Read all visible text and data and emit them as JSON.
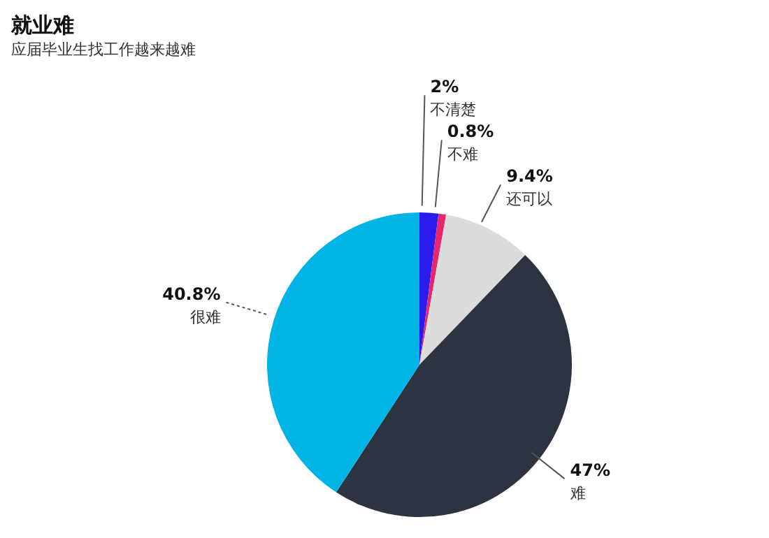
{
  "chart_data": {
    "type": "pie",
    "title": "就业难",
    "subtitle": "应届毕业生找工作越来越难",
    "categories": [
      "不清楚",
      "不难",
      "还可以",
      "难",
      "很难"
    ],
    "values": [
      2,
      0.8,
      9.4,
      47,
      40.8
    ],
    "value_labels": [
      "2%",
      "0.8%",
      "9.4%",
      "47%",
      "40.8%"
    ],
    "colors": [
      "#2a1cf0",
      "#e8266e",
      "#dcdcdc",
      "#2b3440",
      "#00b4e6"
    ],
    "legend": false
  }
}
